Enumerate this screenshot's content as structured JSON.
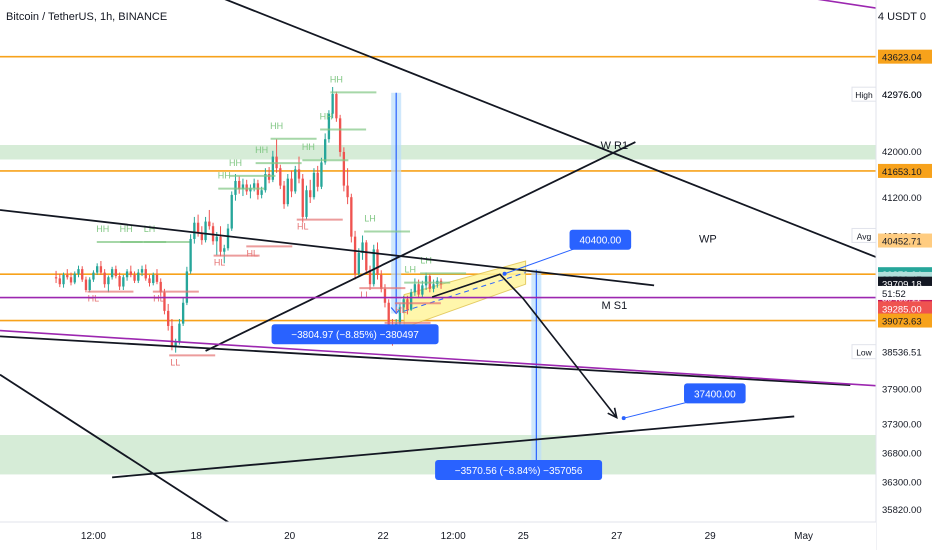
{
  "header": {
    "title": "Bitcoin / TetherUS, 1h, BINANCE",
    "currency_label": "4 USDT 0"
  },
  "colors": {
    "up": "#26a69a",
    "down": "#ef5350",
    "orange": "#f7a21b",
    "purple": "#9c27b0",
    "green_zone": "#c8e6c9",
    "yellow_channel": "#fff59d",
    "blue_measure": "#2962ff",
    "trendline": "#131722"
  },
  "chart_data": {
    "type": "candlestick",
    "ylim": [
      35600,
      44600
    ],
    "x_ticks": [
      {
        "label": "12:00",
        "t": 0.8
      },
      {
        "label": "18",
        "t": 3.0
      },
      {
        "label": "20",
        "t": 5.0
      },
      {
        "label": "22",
        "t": 7.0
      },
      {
        "label": "12:00",
        "t": 8.5
      },
      {
        "label": "25",
        "t": 10.0
      },
      {
        "label": "27",
        "t": 12.0
      },
      {
        "label": "29",
        "t": 14.0
      },
      {
        "label": "May",
        "t": 16.0
      }
    ],
    "y_ticks": [
      42976.0,
      42000.0,
      41200.0,
      40540.56,
      39790.47,
      37900.0,
      37300.0,
      36800.0,
      36300.0,
      35820.0
    ],
    "price_tags": [
      {
        "value": 43623.04,
        "label": "43623.04",
        "style": "orange"
      },
      {
        "value": 42976.0,
        "label": "42976.00",
        "side": "High"
      },
      {
        "value": 41653.1,
        "label": "41653.10",
        "style": "orange"
      },
      {
        "value": 40540.56,
        "label": "40540.56",
        "side": "Avg"
      },
      {
        "value": 40452.71,
        "label": "40452.71",
        "style": "orange_light"
      },
      {
        "value": 39872.64,
        "label": "39872.64",
        "style": "green"
      },
      {
        "value": 39790.47,
        "label": "39790.47",
        "style": "green_light"
      },
      {
        "value": 39709.18,
        "label": "39709.18",
        "style": "dark"
      },
      {
        "value": 39469.11,
        "label": "39469.11",
        "style": "purple"
      },
      {
        "value": 39285.0,
        "label": "39285.00",
        "style": "red"
      },
      {
        "value": 39073.63,
        "label": "39073.63",
        "style": "orange"
      },
      {
        "value": 38536.51,
        "label": "38536.51",
        "side": "Low"
      }
    ],
    "countdown": "51:52",
    "horizontal_levels": [
      {
        "value": 43623.04,
        "color": "orange"
      },
      {
        "value": 41653.1,
        "color": "orange"
      },
      {
        "value": 39872.64,
        "color": "orange"
      },
      {
        "value": 39073.63,
        "color": "orange"
      }
    ],
    "zones": [
      {
        "from": 41850,
        "to": 42100
      },
      {
        "from": 36420,
        "to": 37100
      }
    ],
    "candles": [
      [
        0.0,
        39820,
        39930,
        39720,
        39800
      ],
      [
        0.08,
        39800,
        39880,
        39650,
        39700
      ],
      [
        0.16,
        39700,
        39900,
        39640,
        39860
      ],
      [
        0.24,
        39860,
        39960,
        39780,
        39820
      ],
      [
        0.32,
        39820,
        39900,
        39680,
        39730
      ],
      [
        0.4,
        39730,
        39920,
        39700,
        39880
      ],
      [
        0.48,
        39880,
        40020,
        39820,
        39960
      ],
      [
        0.56,
        39960,
        40010,
        39740,
        39780
      ],
      [
        0.64,
        39780,
        39830,
        39560,
        39600
      ],
      [
        0.72,
        39600,
        39820,
        39560,
        39780
      ],
      [
        0.8,
        39780,
        39940,
        39740,
        39900
      ],
      [
        0.88,
        39900,
        40060,
        39860,
        40010
      ],
      [
        0.96,
        40010,
        40100,
        39860,
        39900
      ],
      [
        1.04,
        39900,
        39960,
        39640,
        39700
      ],
      [
        1.12,
        39700,
        39850,
        39560,
        39820
      ],
      [
        1.2,
        39820,
        40000,
        39780,
        39960
      ],
      [
        1.28,
        39960,
        40020,
        39800,
        39840
      ],
      [
        1.36,
        39840,
        39900,
        39600,
        39660
      ],
      [
        1.44,
        39660,
        39860,
        39600,
        39820
      ],
      [
        1.52,
        39820,
        39960,
        39760,
        39920
      ],
      [
        1.6,
        39920,
        40020,
        39820,
        39860
      ],
      [
        1.68,
        39860,
        39920,
        39720,
        39760
      ],
      [
        1.76,
        39760,
        39960,
        39720,
        39900
      ],
      [
        1.84,
        39900,
        40020,
        39840,
        39960
      ],
      [
        1.92,
        39960,
        40040,
        39760,
        39800
      ],
      [
        2.0,
        39800,
        39860,
        39660,
        39720
      ],
      [
        2.08,
        39720,
        39900,
        39680,
        39860
      ],
      [
        2.16,
        39860,
        39960,
        39700,
        39740
      ],
      [
        2.24,
        39740,
        39800,
        39500,
        39560
      ],
      [
        2.32,
        39560,
        39620,
        39180,
        39240
      ],
      [
        2.4,
        39240,
        39360,
        38900,
        38980
      ],
      [
        2.48,
        38980,
        39100,
        38560,
        38640
      ],
      [
        2.56,
        38640,
        38760,
        38520,
        38700
      ],
      [
        2.64,
        38700,
        39100,
        38660,
        39020
      ],
      [
        2.72,
        39020,
        39480,
        38980,
        39380
      ],
      [
        2.8,
        39380,
        40000,
        39340,
        39920
      ],
      [
        2.88,
        39920,
        40560,
        39880,
        40480
      ],
      [
        2.96,
        40480,
        40860,
        40400,
        40760
      ],
      [
        3.04,
        40760,
        40900,
        40520,
        40580
      ],
      [
        3.12,
        40580,
        40700,
        40380,
        40460
      ],
      [
        3.2,
        40460,
        40860,
        40420,
        40780
      ],
      [
        3.28,
        40780,
        40980,
        40640,
        40700
      ],
      [
        3.36,
        40700,
        40760,
        40380,
        40440
      ],
      [
        3.44,
        40440,
        40600,
        40200,
        40520
      ],
      [
        3.52,
        40520,
        40700,
        40180,
        40260
      ],
      [
        3.6,
        40260,
        40380,
        40060,
        40320
      ],
      [
        3.68,
        40320,
        40740,
        40280,
        40660
      ],
      [
        3.76,
        40660,
        41300,
        40620,
        41240
      ],
      [
        3.84,
        41240,
        41600,
        41140,
        41480
      ],
      [
        3.92,
        41480,
        41560,
        41260,
        41340
      ],
      [
        4.0,
        41340,
        41520,
        41220,
        41420
      ],
      [
        4.08,
        41420,
        41500,
        41240,
        41300
      ],
      [
        4.16,
        41300,
        41420,
        41180,
        41360
      ],
      [
        4.24,
        41360,
        41520,
        41300,
        41440
      ],
      [
        4.32,
        41440,
        41500,
        41160,
        41240
      ],
      [
        4.4,
        41240,
        41380,
        41180,
        41320
      ],
      [
        4.48,
        41320,
        41700,
        41280,
        41600
      ],
      [
        4.56,
        41600,
        41720,
        41440,
        41500
      ],
      [
        4.64,
        41500,
        42000,
        41460,
        41900
      ],
      [
        4.72,
        41900,
        42200,
        41620,
        41700
      ],
      [
        4.8,
        41700,
        41760,
        41340,
        41400
      ],
      [
        4.88,
        41400,
        41480,
        41000,
        41080
      ],
      [
        4.96,
        41080,
        41600,
        41040,
        41520
      ],
      [
        5.04,
        41520,
        41660,
        41200,
        41300
      ],
      [
        5.12,
        41300,
        41740,
        41260,
        41680
      ],
      [
        5.2,
        41680,
        41900,
        41440,
        41520
      ],
      [
        5.28,
        41520,
        41600,
        40760,
        40860
      ],
      [
        5.36,
        40860,
        41400,
        40820,
        41320
      ],
      [
        5.44,
        41320,
        41500,
        41100,
        41200
      ],
      [
        5.52,
        41200,
        41700,
        41160,
        41620
      ],
      [
        5.6,
        41620,
        41740,
        41300,
        41380
      ],
      [
        5.68,
        41380,
        41880,
        41340,
        41800
      ],
      [
        5.76,
        41800,
        42300,
        41760,
        42200
      ],
      [
        5.84,
        42200,
        42700,
        42140,
        42640
      ],
      [
        5.92,
        42640,
        43100,
        42560,
        42980
      ],
      [
        6.0,
        42980,
        43020,
        42500,
        42560
      ],
      [
        6.08,
        42560,
        42620,
        41900,
        41980
      ],
      [
        6.16,
        41980,
        42060,
        41300,
        41400
      ],
      [
        6.24,
        41400,
        41700,
        41080,
        41200
      ],
      [
        6.32,
        41200,
        41260,
        40420,
        40520
      ],
      [
        6.4,
        40520,
        40620,
        39780,
        39880
      ],
      [
        6.48,
        39880,
        40320,
        39820,
        40240
      ],
      [
        6.56,
        40240,
        40540,
        40120,
        40420
      ],
      [
        6.64,
        40420,
        40460,
        39880,
        39940
      ],
      [
        6.72,
        39940,
        40020,
        39600,
        39700
      ],
      [
        6.8,
        39700,
        40380,
        39660,
        40300
      ],
      [
        6.88,
        40300,
        40420,
        39780,
        39860
      ],
      [
        6.96,
        39860,
        39940,
        39560,
        39620
      ],
      [
        7.04,
        39620,
        39700,
        39300,
        39380
      ],
      [
        7.12,
        39380,
        39440,
        38900,
        39000
      ],
      [
        7.2,
        39000,
        39100,
        38640,
        38760
      ],
      [
        7.28,
        38760,
        39100,
        38700,
        39020
      ],
      [
        7.36,
        39020,
        39360,
        38980,
        39300
      ],
      [
        7.44,
        39300,
        39500,
        39200,
        39440
      ],
      [
        7.52,
        39440,
        39500,
        39180,
        39260
      ],
      [
        7.6,
        39260,
        39620,
        39240,
        39560
      ],
      [
        7.68,
        39560,
        39800,
        39500,
        39700
      ],
      [
        7.76,
        39700,
        39780,
        39460,
        39520
      ],
      [
        7.84,
        39520,
        39760,
        39480,
        39680
      ],
      [
        7.92,
        39680,
        39900,
        39600,
        39840
      ],
      [
        8.0,
        39840,
        39880,
        39560,
        39620
      ],
      [
        8.08,
        39620,
        39780,
        39560,
        39700
      ],
      [
        8.16,
        39700,
        39820,
        39640,
        39760
      ],
      [
        8.24,
        39760,
        39800,
        39620,
        39700
      ]
    ],
    "pivot_labels": [
      {
        "text": "HH",
        "t": 6.0,
        "v": 43180,
        "kind": "high"
      },
      {
        "text": "HH",
        "t": 5.78,
        "v": 42540,
        "kind": "high"
      },
      {
        "text": "HH",
        "t": 5.4,
        "v": 42010,
        "kind": "high"
      },
      {
        "text": "HL",
        "t": 5.28,
        "v": 40640,
        "kind": "low"
      },
      {
        "text": "HH",
        "t": 4.72,
        "v": 42380,
        "kind": "high"
      },
      {
        "text": "HH",
        "t": 4.4,
        "v": 41960,
        "kind": "high"
      },
      {
        "text": "HL",
        "t": 4.2,
        "v": 40180,
        "kind": "low"
      },
      {
        "text": "HH",
        "t": 3.84,
        "v": 41740,
        "kind": "high"
      },
      {
        "text": "HH",
        "t": 3.6,
        "v": 41520,
        "kind": "high"
      },
      {
        "text": "HL",
        "t": 3.5,
        "v": 40020,
        "kind": "low"
      },
      {
        "text": "LH",
        "t": 2.0,
        "v": 40600,
        "kind": "high"
      },
      {
        "text": "HH",
        "t": 1.5,
        "v": 40600,
        "kind": "high"
      },
      {
        "text": "HH",
        "t": 1.0,
        "v": 40600,
        "kind": "high"
      },
      {
        "text": "HL",
        "t": 0.8,
        "v": 39400,
        "kind": "low"
      },
      {
        "text": "HL",
        "t": 2.2,
        "v": 39400,
        "kind": "low"
      },
      {
        "text": "LL",
        "t": 2.55,
        "v": 38300,
        "kind": "low"
      },
      {
        "text": "LH",
        "t": 6.72,
        "v": 40780,
        "kind": "high"
      },
      {
        "text": "LL",
        "t": 6.62,
        "v": 39460,
        "kind": "low"
      },
      {
        "text": "LL",
        "t": 7.16,
        "v": 38860,
        "kind": "low"
      },
      {
        "text": "LH",
        "t": 7.58,
        "v": 39900,
        "kind": "high"
      },
      {
        "text": "HL",
        "t": 7.38,
        "v": 39200,
        "kind": "low"
      },
      {
        "text": "LH",
        "t": 7.92,
        "v": 40060,
        "kind": "high"
      }
    ],
    "annotations": [
      {
        "text": "W R1",
        "t": 11.95,
        "v": 42030
      },
      {
        "text": "WP",
        "t": 13.95,
        "v": 40420
      },
      {
        "text": "M S1",
        "t": 11.95,
        "v": 39270
      }
    ],
    "callouts": [
      {
        "text": "40400.00",
        "t": 11.65,
        "v": 40450,
        "anchor_t": 9.6,
        "anchor_v": 39880
      },
      {
        "text": "37400.00",
        "t": 14.1,
        "v": 37800,
        "anchor_t": 12.15,
        "anchor_v": 37390
      },
      {
        "text": "−3804.97 (−8.85%) −380497",
        "t": 6.4,
        "v": 38820
      },
      {
        "text": "−3570.56 (−8.84%) −357056",
        "t": 9.9,
        "v": 36480
      }
    ],
    "measures": [
      {
        "t": 7.28,
        "from": 43000,
        "to": 39195
      },
      {
        "t": 10.28,
        "from": 39950,
        "to": 36380
      }
    ],
    "channel": {
      "t1": 7.45,
      "t2": 10.05,
      "bottom1": 38950,
      "top1": 39520,
      "bottom2": 39700,
      "top2": 40100
    },
    "trendlines": [
      {
        "t1": -1.2,
        "v1": 46150,
        "t2": 18.2,
        "v2": 39960
      },
      {
        "t1": -1.2,
        "v1": 40980,
        "t2": 12.8,
        "v2": 39680
      },
      {
        "t1": 3.2,
        "v1": 38550,
        "t2": 12.4,
        "v2": 42150
      },
      {
        "t1": -1.2,
        "v1": 38800,
        "t2": 17.0,
        "v2": 37960
      },
      {
        "t1": 1.2,
        "v1": 36370,
        "t2": 15.8,
        "v2": 37420
      },
      {
        "t1": -1.2,
        "v1": 38140,
        "t2": 4.2,
        "v2": 35330
      }
    ],
    "arrow_path": [
      {
        "t": 8.05,
        "v": 39480
      },
      {
        "t": 9.5,
        "v": 39870
      },
      {
        "t": 10.0,
        "v": 39450
      },
      {
        "t": 12.0,
        "v": 37400
      }
    ],
    "legend_extremes": {
      "high_label": "High",
      "avg_label": "Avg",
      "low_label": "Low"
    }
  }
}
